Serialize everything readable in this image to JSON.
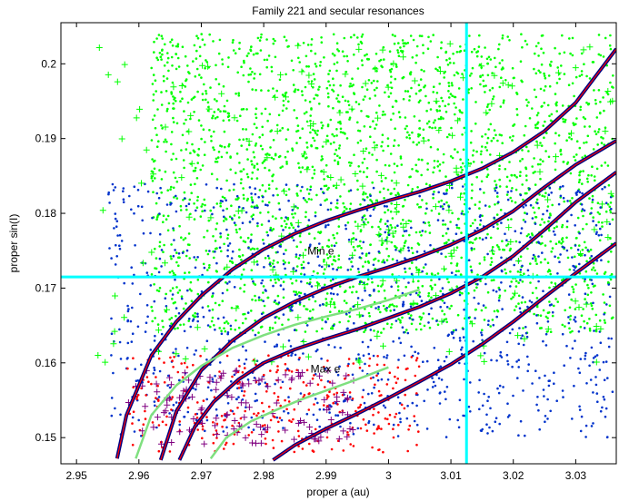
{
  "chart_data": {
    "type": "scatter",
    "title": "Family 221 and secular resonances",
    "xlabel": "proper a (au)",
    "ylabel": "proper sin(I)",
    "xlim": [
      2.9475,
      3.0365
    ],
    "ylim": [
      0.1465,
      0.2055
    ],
    "xticks": [
      2.95,
      2.96,
      2.97,
      2.98,
      2.99,
      3,
      3.01,
      3.02,
      3.03
    ],
    "xtick_labels": [
      "2.95",
      "2.96",
      "2.97",
      "2.98",
      "2.99",
      "3",
      "3.01",
      "3.02",
      "3.03"
    ],
    "yticks": [
      0.15,
      0.16,
      0.17,
      0.18,
      0.19,
      0.2
    ],
    "ytick_labels": [
      "0.15",
      "0.16",
      "0.17",
      "0.18",
      "0.19",
      "0.2"
    ],
    "grid": false,
    "annotations": [
      {
        "text": "Min e",
        "x": 2.987,
        "y": 0.1745
      },
      {
        "text": "Max e",
        "x": 2.9875,
        "y": 0.1587
      }
    ],
    "reference_lines": {
      "vertical_x": 3.0125,
      "horizontal_y": 0.1715,
      "color": "#00ffff"
    },
    "point_clouds": [
      {
        "marker": "dot",
        "color": "#00ff00",
        "x_range": [
          2.962,
          3.036
        ],
        "y_range": [
          0.164,
          0.204
        ],
        "count": 2500
      },
      {
        "marker": "dot",
        "color": "#0033cc",
        "x_range": [
          2.955,
          3.036
        ],
        "y_range": [
          0.15,
          0.184
        ],
        "count": 1100
      },
      {
        "marker": "dot",
        "color": "#ff0000",
        "x_range": [
          2.958,
          3.005
        ],
        "y_range": [
          0.148,
          0.161
        ],
        "count": 320
      },
      {
        "marker": "plus",
        "color": "#800080",
        "x_range": [
          2.958,
          2.995
        ],
        "y_range": [
          0.149,
          0.159
        ],
        "count": 130
      },
      {
        "marker": "plus",
        "color": "#00ff00",
        "x_range": [
          2.952,
          3.036
        ],
        "y_range": [
          0.16,
          0.203
        ],
        "count": 200
      }
    ],
    "curves": [
      {
        "color": "#ff0000",
        "outline": "#000080",
        "x": [
          2.9565,
          2.958,
          2.962,
          2.966,
          2.97,
          2.975,
          2.98,
          2.985,
          2.99,
          2.995,
          3.0,
          3.005,
          3.01,
          3.015,
          3.02,
          3.025,
          3.03,
          3.0365
        ],
        "y": [
          0.1472,
          0.153,
          0.161,
          0.1655,
          0.169,
          0.1725,
          0.1752,
          0.1773,
          0.179,
          0.1804,
          0.1817,
          0.1829,
          0.1843,
          0.186,
          0.1882,
          0.191,
          0.1948,
          0.202
        ]
      },
      {
        "color": "#ff0000",
        "outline": "#000080",
        "x": [
          2.9635,
          2.966,
          2.97,
          2.975,
          2.98,
          2.985,
          2.99,
          2.995,
          3.0,
          3.005,
          3.01,
          3.015,
          3.02,
          3.025,
          3.03,
          3.0365
        ],
        "y": [
          0.147,
          0.1535,
          0.159,
          0.163,
          0.166,
          0.1682,
          0.17,
          0.1715,
          0.1728,
          0.1742,
          0.1758,
          0.1778,
          0.1803,
          0.1835,
          0.1865,
          0.1897
        ]
      },
      {
        "color": "#ff0000",
        "outline": "#000080",
        "x": [
          2.9665,
          2.969,
          2.972,
          2.976,
          2.98,
          2.985,
          2.99,
          2.995,
          3.0,
          3.005,
          3.01,
          3.015,
          3.02,
          3.025,
          3.03,
          3.0365
        ],
        "y": [
          0.147,
          0.1515,
          0.1548,
          0.1578,
          0.16,
          0.1618,
          0.1632,
          0.1645,
          0.166,
          0.1675,
          0.1693,
          0.1715,
          0.1743,
          0.1778,
          0.1815,
          0.1855
        ]
      },
      {
        "color": "#ff0000",
        "outline": "#000080",
        "x": [
          2.9815,
          2.985,
          2.99,
          2.995,
          3.0,
          3.005,
          3.01,
          3.015,
          3.02,
          3.025,
          3.03,
          3.0365
        ],
        "y": [
          0.147,
          0.149,
          0.1512,
          0.1532,
          0.1553,
          0.1575,
          0.1598,
          0.1625,
          0.1655,
          0.1688,
          0.172,
          0.176
        ]
      },
      {
        "color": "#7fe07f",
        "x": [
          2.9595,
          2.962,
          2.966,
          2.97,
          2.975,
          2.98,
          2.985,
          2.99,
          2.995,
          3.0,
          3.005
        ],
        "y": [
          0.1472,
          0.153,
          0.157,
          0.1596,
          0.162,
          0.1637,
          0.1651,
          0.1662,
          0.1672,
          0.1684,
          0.1698
        ]
      },
      {
        "color": "#7fe07f",
        "x": [
          2.9715,
          2.974,
          2.978,
          2.982,
          2.986,
          2.99,
          2.995,
          3.0
        ],
        "y": [
          0.1472,
          0.15,
          0.1522,
          0.1537,
          0.1551,
          0.1563,
          0.1578,
          0.1594
        ]
      }
    ]
  }
}
